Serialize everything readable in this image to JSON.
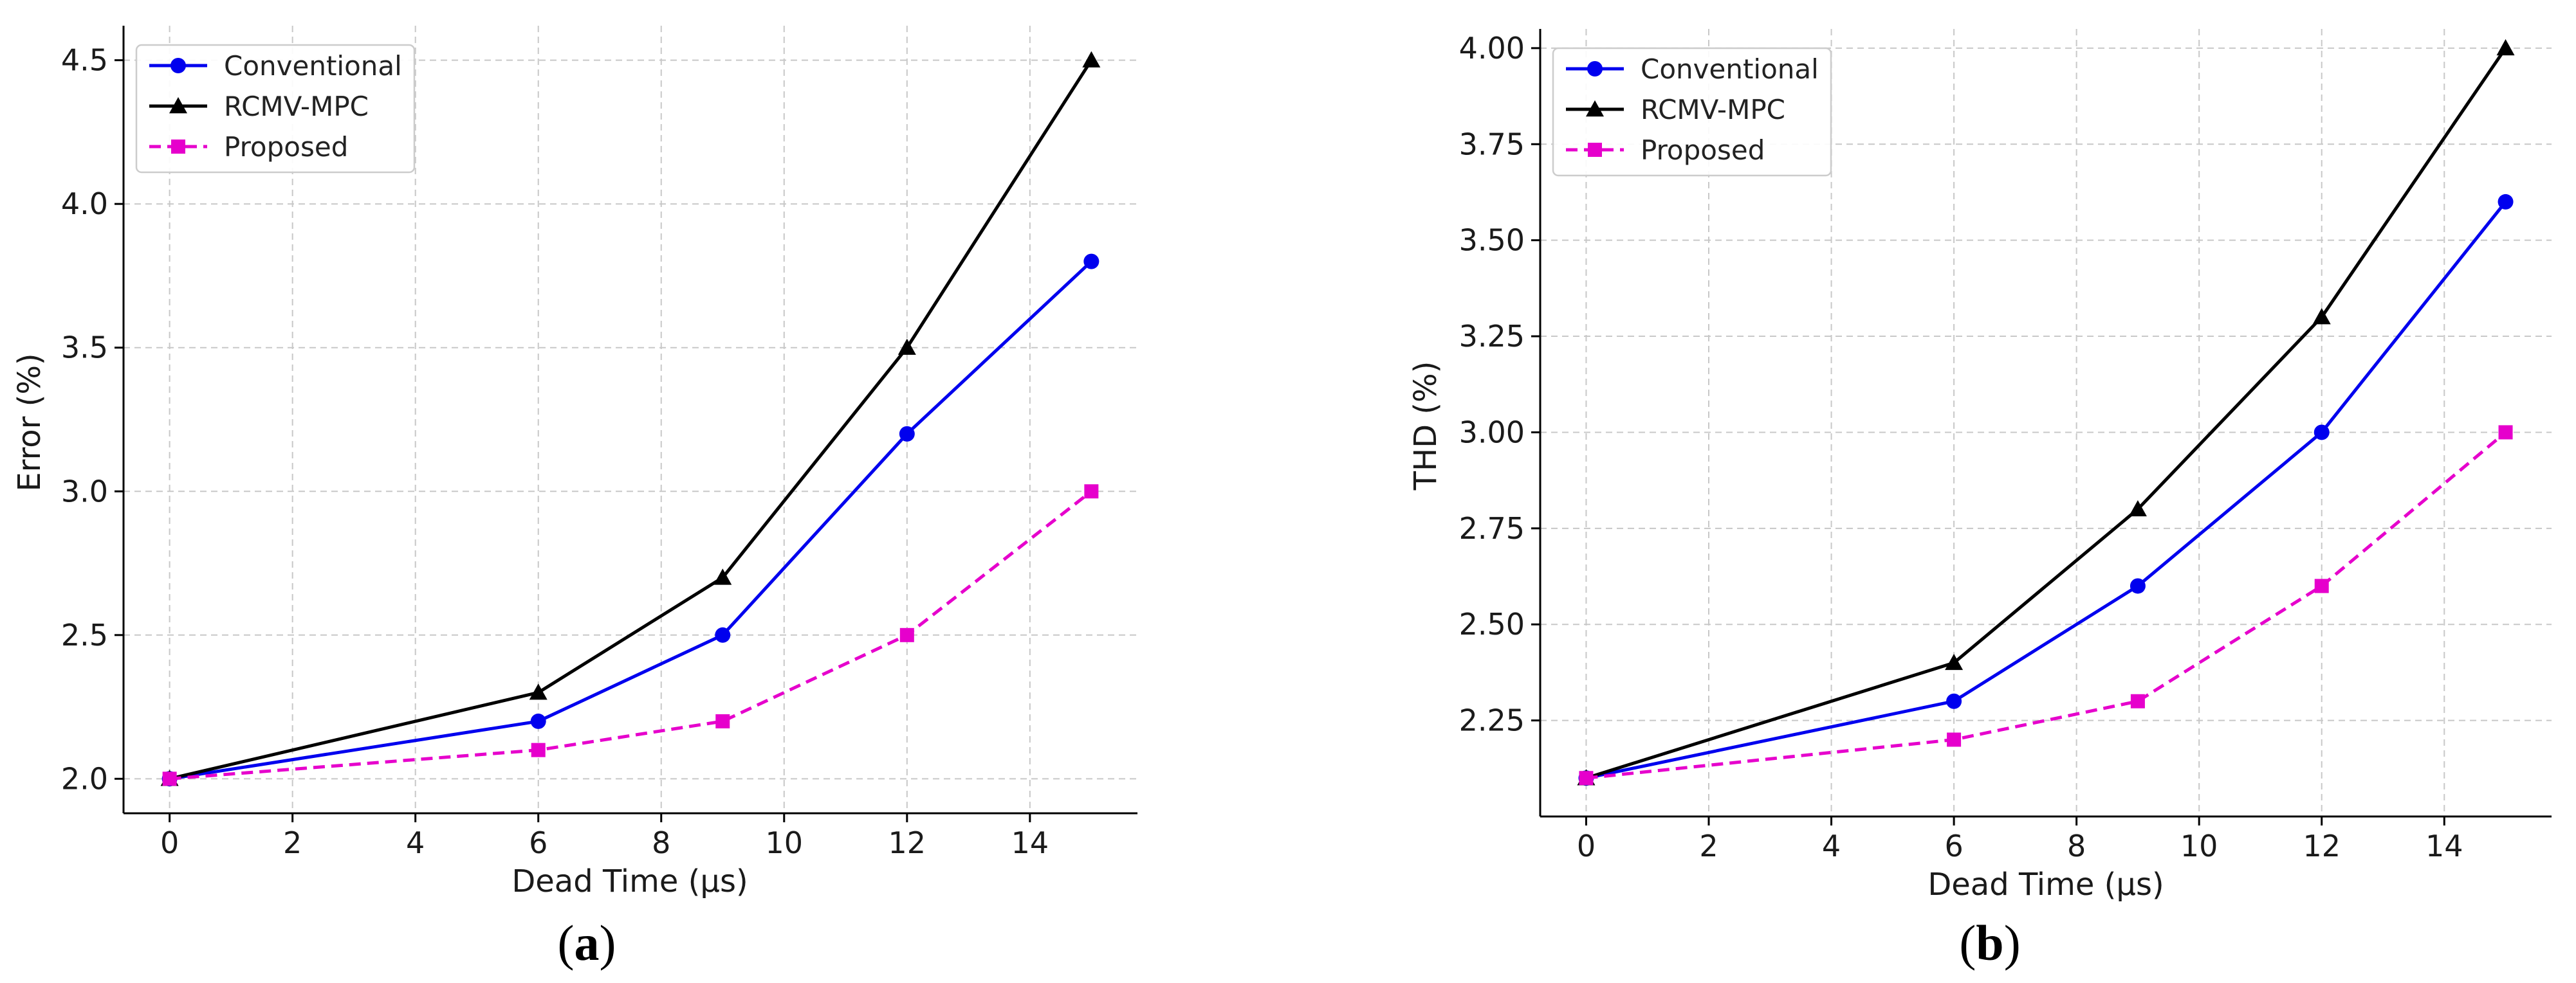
{
  "chart_data": [
    {
      "type": "line",
      "panel_label": "a",
      "xlabel": "Dead Time (µs)",
      "ylabel": "Error (%)",
      "xlim": [
        -0.75,
        15.75
      ],
      "ylim": [
        1.88,
        4.62
      ],
      "xticks": [
        0,
        2,
        4,
        6,
        8,
        10,
        12,
        14
      ],
      "xtick_labels": [
        "0",
        "2",
        "4",
        "6",
        "8",
        "10",
        "12",
        "14"
      ],
      "yticks": [
        2.0,
        2.5,
        3.0,
        3.5,
        4.0,
        4.5
      ],
      "ytick_labels": [
        "2.0",
        "2.5",
        "3.0",
        "3.5",
        "4.0",
        "4.5"
      ],
      "grid": true,
      "legend_position": "top-left",
      "x": [
        0,
        6,
        9,
        12,
        15
      ],
      "series": [
        {
          "name": "Conventional",
          "values": [
            2.0,
            2.2,
            2.5,
            3.2,
            3.8
          ],
          "color": "#0000ee",
          "marker": "circle",
          "dash": "solid"
        },
        {
          "name": "RCMV-MPC",
          "values": [
            2.0,
            2.3,
            2.7,
            3.5,
            4.5
          ],
          "color": "#000000",
          "marker": "triangle",
          "dash": "solid"
        },
        {
          "name": "Proposed",
          "values": [
            2.0,
            2.1,
            2.2,
            2.5,
            3.0
          ],
          "color": "#e600cc",
          "marker": "square",
          "dash": "dashed"
        }
      ]
    },
    {
      "type": "line",
      "panel_label": "b",
      "xlabel": "Dead Time (µs)",
      "ylabel": "THD (%)",
      "xlim": [
        -0.75,
        15.75
      ],
      "ylim": [
        2.0,
        4.05
      ],
      "xticks": [
        0,
        2,
        4,
        6,
        8,
        10,
        12,
        14
      ],
      "xtick_labels": [
        "0",
        "2",
        "4",
        "6",
        "8",
        "10",
        "12",
        "14"
      ],
      "yticks": [
        2.25,
        2.5,
        2.75,
        3.0,
        3.25,
        3.5,
        3.75,
        4.0
      ],
      "ytick_labels": [
        "2.25",
        "2.50",
        "2.75",
        "3.00",
        "3.25",
        "3.50",
        "3.75",
        "4.00"
      ],
      "grid": true,
      "legend_position": "top-left",
      "x": [
        0,
        6,
        9,
        12,
        15
      ],
      "series": [
        {
          "name": "Conventional",
          "values": [
            2.1,
            2.3,
            2.6,
            3.0,
            3.6
          ],
          "color": "#0000ee",
          "marker": "circle",
          "dash": "solid"
        },
        {
          "name": "RCMV-MPC",
          "values": [
            2.1,
            2.4,
            2.8,
            3.3,
            4.0
          ],
          "color": "#000000",
          "marker": "triangle",
          "dash": "solid"
        },
        {
          "name": "Proposed",
          "values": [
            2.1,
            2.2,
            2.3,
            2.6,
            3.0
          ],
          "color": "#e600cc",
          "marker": "square",
          "dash": "dashed"
        }
      ]
    }
  ]
}
